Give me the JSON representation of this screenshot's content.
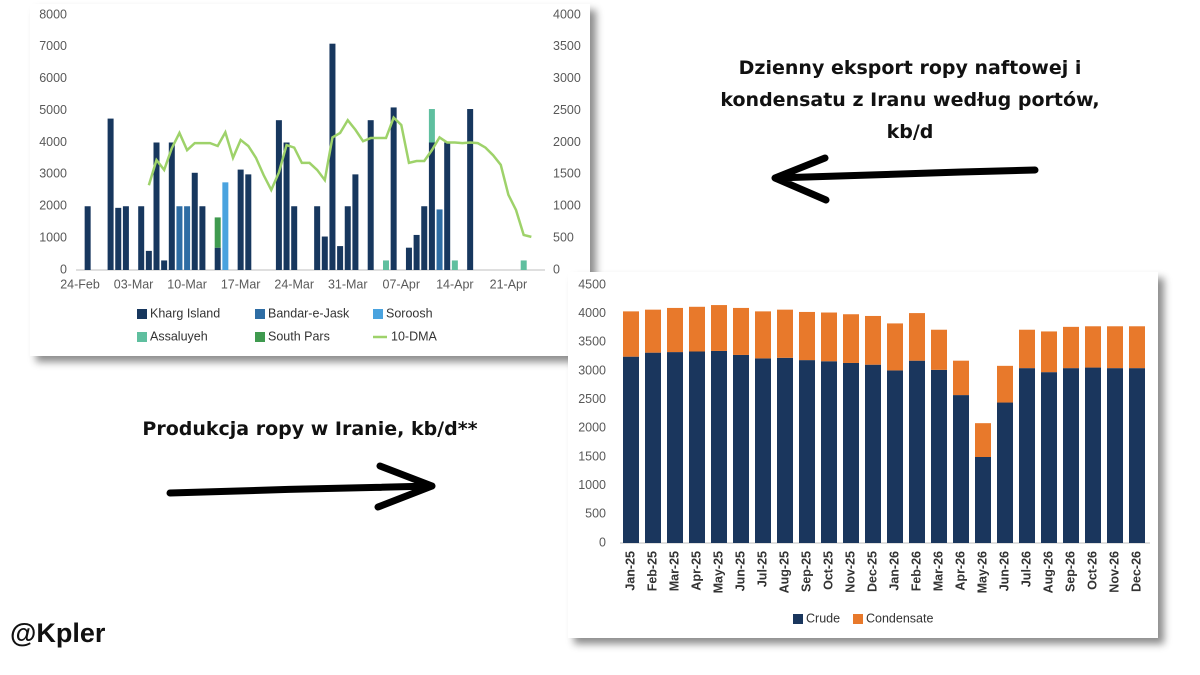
{
  "texts": {
    "export_caption": "Dzienny eksport ropy naftowej i kondensatu z Iranu według portów, kb/d",
    "production_caption": "Produkcja ropy w Iranie, kb/d**",
    "source": "@Kpler"
  },
  "chart_data": [
    {
      "type": "bar",
      "stacked": true,
      "categories": [
        "24-Feb",
        null,
        null,
        null,
        null,
        null,
        null,
        "03-Mar",
        null,
        null,
        null,
        null,
        null,
        null,
        "10-Mar",
        null,
        null,
        null,
        null,
        null,
        null,
        "17-Mar",
        null,
        null,
        null,
        null,
        null,
        null,
        "24-Mar",
        null,
        null,
        null,
        null,
        null,
        null,
        "31-Mar",
        null,
        null,
        null,
        null,
        null,
        null,
        "07-Apr",
        null,
        null,
        null,
        null,
        null,
        null,
        "14-Apr",
        null,
        null,
        null,
        null,
        null,
        null,
        "21-Apr",
        null,
        null,
        null,
        null
      ],
      "ylim": [
        0,
        8000
      ],
      "yticks": [
        0,
        1000,
        2000,
        3000,
        4000,
        5000,
        6000,
        7000,
        8000
      ],
      "y2lim": [
        0,
        4000
      ],
      "y2ticks": [
        0,
        500,
        1000,
        1500,
        2000,
        2500,
        3000,
        3500,
        4000
      ],
      "series": [
        {
          "name": "Kharg Island",
          "color": "#17375e",
          "values": [
            null,
            2000,
            null,
            null,
            4750,
            1950,
            2000,
            null,
            2000,
            600,
            4000,
            300,
            4000,
            null,
            null,
            3050,
            2000,
            null,
            700,
            null,
            null,
            3150,
            3000,
            null,
            null,
            null,
            4700,
            4000,
            2000,
            null,
            null,
            2000,
            1050,
            7100,
            750,
            2000,
            3000,
            null,
            4700,
            null,
            null,
            5100,
            null,
            700,
            1100,
            2000,
            4000,
            null,
            4000,
            null,
            null,
            5050,
            null,
            null,
            null,
            null,
            null,
            null,
            null,
            null,
            null
          ]
        },
        {
          "name": "Bandar-e-Jask",
          "color": "#2e6da4",
          "values": [
            null,
            null,
            null,
            null,
            null,
            null,
            null,
            null,
            null,
            null,
            null,
            null,
            null,
            2000,
            2000,
            null,
            null,
            null,
            null,
            null,
            null,
            null,
            null,
            null,
            null,
            null,
            null,
            null,
            null,
            null,
            null,
            null,
            null,
            null,
            null,
            null,
            null,
            null,
            null,
            null,
            null,
            null,
            null,
            null,
            null,
            null,
            null,
            1900,
            null,
            null,
            null,
            null,
            null,
            null,
            null,
            null,
            null,
            null,
            null,
            null,
            null
          ]
        },
        {
          "name": "Soroosh",
          "color": "#4aa3df",
          "values": [
            null,
            null,
            null,
            null,
            null,
            null,
            null,
            null,
            null,
            null,
            null,
            null,
            null,
            null,
            null,
            null,
            null,
            null,
            null,
            2750,
            null,
            null,
            null,
            null,
            null,
            null,
            null,
            null,
            null,
            null,
            null,
            null,
            null,
            null,
            null,
            null,
            null,
            null,
            null,
            null,
            null,
            null,
            null,
            null,
            null,
            null,
            null,
            null,
            null,
            null,
            null,
            null,
            null,
            null,
            null,
            null,
            null,
            null,
            null,
            null,
            null
          ]
        },
        {
          "name": "Assaluyeh",
          "color": "#5fbf9f",
          "values": [
            null,
            null,
            null,
            null,
            null,
            null,
            null,
            null,
            null,
            null,
            null,
            null,
            null,
            null,
            null,
            null,
            null,
            null,
            null,
            null,
            null,
            null,
            null,
            null,
            null,
            null,
            null,
            null,
            null,
            null,
            null,
            null,
            null,
            null,
            null,
            null,
            null,
            null,
            null,
            null,
            300,
            null,
            null,
            null,
            null,
            null,
            1050,
            null,
            null,
            300,
            null,
            null,
            null,
            null,
            null,
            null,
            null,
            null,
            300,
            null,
            null
          ]
        },
        {
          "name": "South Pars",
          "color": "#3f9a4f",
          "values": [
            null,
            null,
            null,
            null,
            null,
            null,
            null,
            null,
            null,
            null,
            null,
            null,
            null,
            null,
            null,
            null,
            null,
            null,
            950,
            null,
            null,
            null,
            null,
            null,
            null,
            null,
            null,
            null,
            null,
            null,
            null,
            null,
            null,
            null,
            null,
            null,
            null,
            null,
            null,
            null,
            null,
            null,
            null,
            null,
            null,
            null,
            null,
            null,
            null,
            null,
            null,
            null,
            null,
            null,
            null,
            null,
            null,
            null,
            null,
            null,
            null
          ]
        },
        {
          "name": "10-DMA",
          "color": "#9ed26a",
          "type": "line",
          "axis": "y2",
          "values": [
            null,
            null,
            null,
            null,
            null,
            null,
            null,
            null,
            null,
            1330,
            1725,
            1570,
            1910,
            2150,
            1880,
            1990,
            1990,
            1990,
            1945,
            2160,
            1760,
            2040,
            1945,
            1760,
            1490,
            1255,
            1530,
            1960,
            1920,
            1680,
            1680,
            1570,
            1410,
            2080,
            2150,
            2350,
            2200,
            2020,
            2070,
            2070,
            2070,
            2390,
            2275,
            1680,
            1710,
            1710,
            1880,
            2080,
            2000,
            2000,
            1990,
            2000,
            1990,
            1920,
            1800,
            1650,
            1180,
            940,
            550,
            520,
            null
          ]
        }
      ]
    },
    {
      "type": "bar",
      "stacked": true,
      "categories": [
        "Jan-25",
        "Feb-25",
        "Mar-25",
        "Apr-25",
        "May-25",
        "Jun-25",
        "Jul-25",
        "Aug-25",
        "Sep-25",
        "Oct-25",
        "Nov-25",
        "Dec-25",
        "Jan-26",
        "Feb-26",
        "Mar-26",
        "Apr-26",
        "May-26",
        "Jun-26",
        "Jul-26",
        "Aug-26",
        "Sep-26",
        "Oct-26",
        "Nov-26",
        "Dec-26"
      ],
      "ylim": [
        0,
        4500
      ],
      "yticks": [
        0,
        500,
        1000,
        1500,
        2000,
        2500,
        3000,
        3500,
        4000,
        4500
      ],
      "series": [
        {
          "name": "Crude",
          "color": "#1a365d",
          "values": [
            3250,
            3320,
            3330,
            3340,
            3350,
            3280,
            3220,
            3230,
            3190,
            3170,
            3140,
            3110,
            3010,
            3180,
            3020,
            2580,
            1500,
            2450,
            3050,
            2980,
            3050,
            3060,
            3050,
            3050
          ]
        },
        {
          "name": "Condensate",
          "color": "#e8792b",
          "values": [
            790,
            750,
            770,
            780,
            800,
            820,
            820,
            840,
            840,
            850,
            850,
            850,
            820,
            830,
            700,
            600,
            590,
            640,
            670,
            710,
            720,
            720,
            730,
            730
          ]
        }
      ]
    }
  ]
}
